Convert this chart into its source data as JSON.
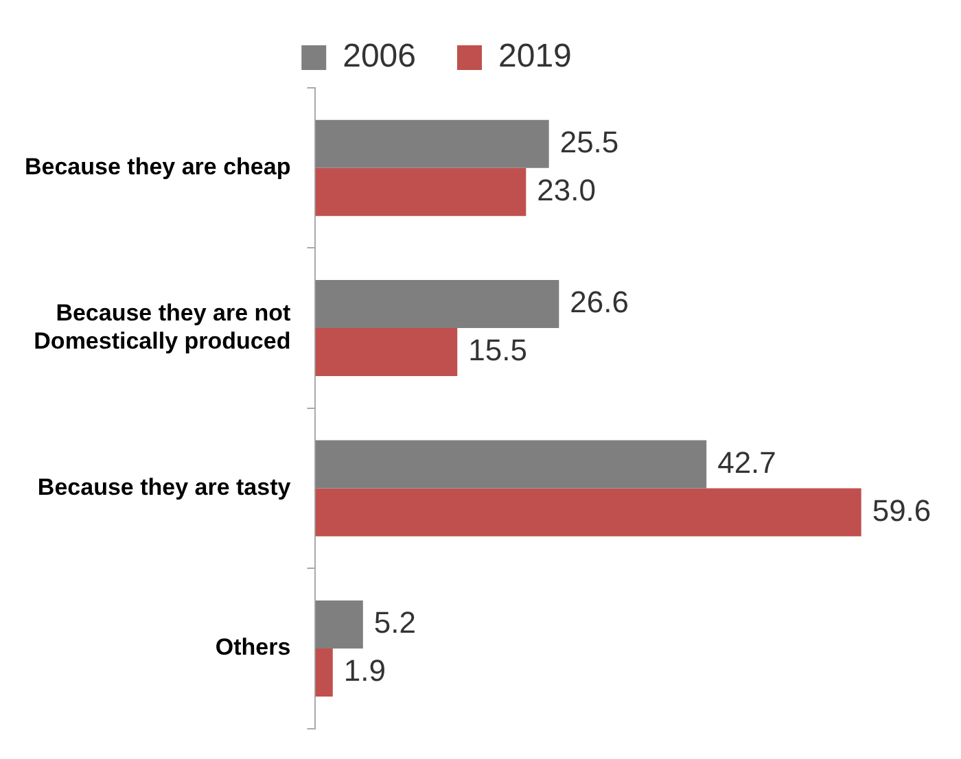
{
  "chart_data": {
    "type": "bar",
    "orientation": "horizontal",
    "categories": [
      "Because they are cheap",
      "Because they are not Domestically produced",
      "Because they are tasty",
      "Others"
    ],
    "series": [
      {
        "name": "2006",
        "color": "#7f7f7f",
        "values": [
          25.5,
          26.6,
          42.7,
          5.2
        ],
        "value_labels": [
          "25.5",
          "26.6",
          "42.7",
          "5.2"
        ]
      },
      {
        "name": "2019",
        "color": "#c0504d",
        "values": [
          23.0,
          15.5,
          59.6,
          1.9
        ],
        "value_labels": [
          "23.0",
          "15.5",
          "59.6",
          "1.9"
        ]
      }
    ],
    "legend": "top",
    "grid": false
  }
}
